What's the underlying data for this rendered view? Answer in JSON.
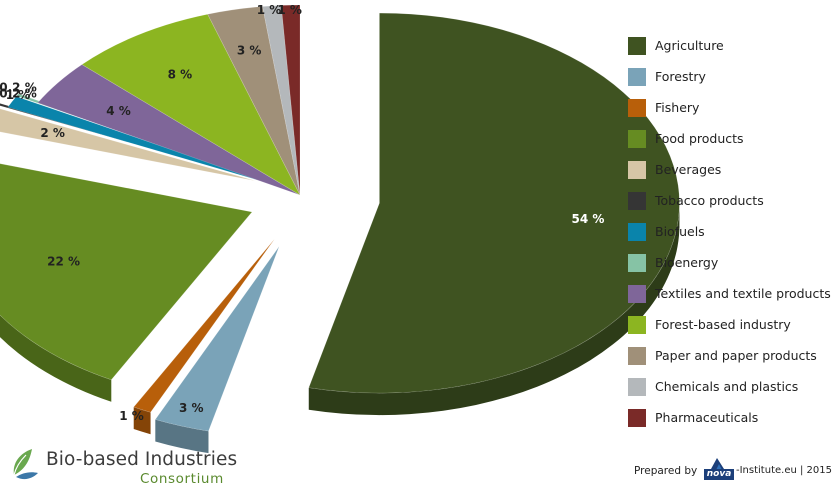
{
  "chart_data": {
    "type": "pie",
    "labels": [
      "Agriculture",
      "Forestry",
      "Fishery",
      "Food products",
      "Beverages",
      "Tobacco products",
      "Biofuels",
      "Bioenergy",
      "Textiles and textile products",
      "Forest-based industry",
      "Paper and paper products",
      "Chemicals and plastics",
      "Pharmaceuticals"
    ],
    "values": [
      54,
      3,
      1,
      22,
      2,
      0.2,
      1,
      0.2,
      4,
      8,
      3,
      1,
      1
    ],
    "value_labels": [
      "54 %",
      "3 %",
      "1 %",
      "22 %",
      "2 %",
      "0.2 %",
      "1 %",
      "0.2 %",
      "4 %",
      "8 %",
      "3 %",
      "1 %",
      "1 %"
    ],
    "colors": [
      "#3f5321",
      "#7aa3b8",
      "#b85f0a",
      "#668c22",
      "#d6c6a6",
      "#353535",
      "#0a84ab",
      "#86c3a5",
      "#7f6699",
      "#8cb521",
      "#a09079",
      "#b4b8bb",
      "#7a2a28"
    ],
    "label_colors": [
      "#ffffff",
      "#222222",
      "#222222",
      "#222222",
      "#222222",
      "#222222",
      "#222222",
      "#222222",
      "#222222",
      "#222222",
      "#222222",
      "#222222",
      "#222222"
    ],
    "legend_placement": "right",
    "style": "exploded 3D pie"
  },
  "legend": {
    "items": [
      {
        "label": "Agriculture",
        "color": "#3f5321"
      },
      {
        "label": "Forestry",
        "color": "#7aa3b8"
      },
      {
        "label": "Fishery",
        "color": "#b85f0a"
      },
      {
        "label": "Food products",
        "color": "#668c22"
      },
      {
        "label": "Beverages",
        "color": "#d6c6a6"
      },
      {
        "label": "Tobacco products",
        "color": "#353535"
      },
      {
        "label": "Biofuels",
        "color": "#0a84ab"
      },
      {
        "label": "Bioenergy",
        "color": "#86c3a5"
      },
      {
        "label": "Textiles and textile products",
        "color": "#7f6699"
      },
      {
        "label": "Forest-based industry",
        "color": "#8cb521"
      },
      {
        "label": "Paper and paper products",
        "color": "#a09079"
      },
      {
        "label": "Chemicals and plastics",
        "color": "#b4b8bb"
      },
      {
        "label": "Pharmaceuticals",
        "color": "#7a2a28"
      }
    ]
  },
  "footer": {
    "logo_title": "Bio-based Industries",
    "logo_subtitle": "Consortium",
    "prepared_by": "Prepared by",
    "nova_logo_text": "nova",
    "credit": "-Institute.eu | 2015",
    "brand_color": "#5a8a2e"
  }
}
